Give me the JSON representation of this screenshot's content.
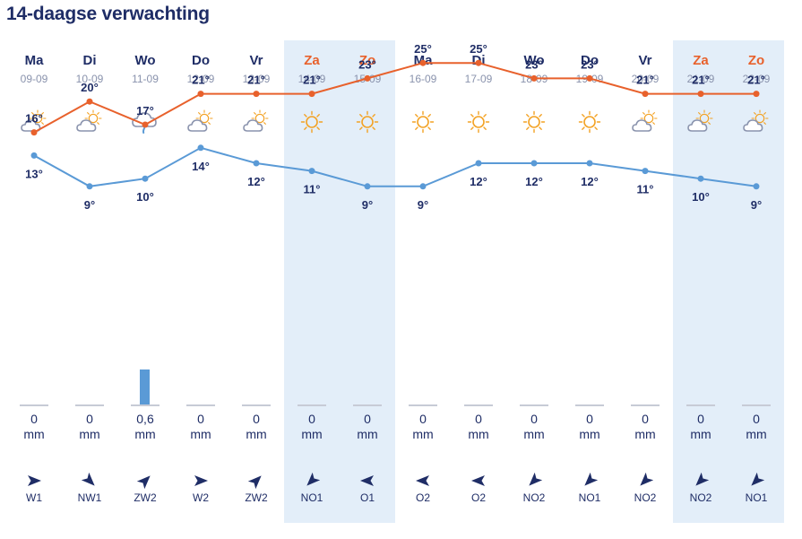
{
  "page": {
    "title": "14-daagse verwachting"
  },
  "colors": {
    "max_line": "#e8612c",
    "min_line": "#5a9ad6",
    "weekend_bg": "#e3eef9",
    "text": "#1f2d66",
    "weekend_text": "#e8612c",
    "sun": "#f3a224",
    "cloud": "#8a93ad",
    "rain": "#5a9ad6"
  },
  "days": [
    {
      "day": "Ma",
      "date": "09-09",
      "weekend": false,
      "icon": "sun-behind-cloud-icon",
      "max": "16°",
      "min": "13°",
      "max_val": 16,
      "min_val": 13,
      "rain": "0",
      "rain_val": 0,
      "unit": "mm",
      "wind": "W1",
      "wind_dir": 90
    },
    {
      "day": "Di",
      "date": "10-09",
      "weekend": false,
      "icon": "sun-behind-cloud-icon",
      "max": "20°",
      "min": "9°",
      "max_val": 20,
      "min_val": 9,
      "rain": "0",
      "rain_val": 0,
      "unit": "mm",
      "wind": "NW1",
      "wind_dir": 135
    },
    {
      "day": "Wo",
      "date": "11-09",
      "weekend": false,
      "icon": "rain-cloud-icon",
      "max": "17°",
      "min": "10°",
      "max_val": 17,
      "min_val": 10,
      "rain": "0,6",
      "rain_val": 0.6,
      "unit": "mm",
      "wind": "ZW2",
      "wind_dir": 45
    },
    {
      "day": "Do",
      "date": "12-09",
      "weekend": false,
      "icon": "sun-behind-cloud-icon",
      "max": "21°",
      "min": "14°",
      "max_val": 21,
      "min_val": 14,
      "rain": "0",
      "rain_val": 0,
      "unit": "mm",
      "wind": "W2",
      "wind_dir": 90
    },
    {
      "day": "Vr",
      "date": "13-09",
      "weekend": false,
      "icon": "sun-behind-cloud-icon",
      "max": "21°",
      "min": "12°",
      "max_val": 21,
      "min_val": 12,
      "rain": "0",
      "rain_val": 0,
      "unit": "mm",
      "wind": "ZW2",
      "wind_dir": 45
    },
    {
      "day": "Za",
      "date": "14-09",
      "weekend": true,
      "icon": "sun-icon",
      "max": "21°",
      "min": "11°",
      "max_val": 21,
      "min_val": 11,
      "rain": "0",
      "rain_val": 0,
      "unit": "mm",
      "wind": "NO1",
      "wind_dir": 225
    },
    {
      "day": "Zo",
      "date": "15-09",
      "weekend": true,
      "icon": "sun-icon",
      "max": "23°",
      "min": "9°",
      "max_val": 23,
      "min_val": 9,
      "rain": "0",
      "rain_val": 0,
      "unit": "mm",
      "wind": "O1",
      "wind_dir": 270
    },
    {
      "day": "Ma",
      "date": "16-09",
      "weekend": false,
      "icon": "sun-icon",
      "max": "25°",
      "min": "9°",
      "max_val": 25,
      "min_val": 9,
      "rain": "0",
      "rain_val": 0,
      "unit": "mm",
      "wind": "O2",
      "wind_dir": 270
    },
    {
      "day": "Di",
      "date": "17-09",
      "weekend": false,
      "icon": "sun-icon",
      "max": "25°",
      "min": "12°",
      "max_val": 25,
      "min_val": 12,
      "rain": "0",
      "rain_val": 0,
      "unit": "mm",
      "wind": "O2",
      "wind_dir": 270
    },
    {
      "day": "Wo",
      "date": "18-09",
      "weekend": false,
      "icon": "sun-icon",
      "max": "23°",
      "min": "12°",
      "max_val": 23,
      "min_val": 12,
      "rain": "0",
      "rain_val": 0,
      "unit": "mm",
      "wind": "NO2",
      "wind_dir": 225
    },
    {
      "day": "Do",
      "date": "19-09",
      "weekend": false,
      "icon": "sun-icon",
      "max": "23°",
      "min": "12°",
      "max_val": 23,
      "min_val": 12,
      "rain": "0",
      "rain_val": 0,
      "unit": "mm",
      "wind": "NO1",
      "wind_dir": 225
    },
    {
      "day": "Vr",
      "date": "20-09",
      "weekend": false,
      "icon": "sun-behind-cloud-icon",
      "max": "21°",
      "min": "11°",
      "max_val": 21,
      "min_val": 11,
      "rain": "0",
      "rain_val": 0,
      "unit": "mm",
      "wind": "NO2",
      "wind_dir": 225
    },
    {
      "day": "Za",
      "date": "21-09",
      "weekend": true,
      "icon": "sun-behind-cloud-icon",
      "max": "21°",
      "min": "10°",
      "max_val": 21,
      "min_val": 10,
      "rain": "0",
      "rain_val": 0,
      "unit": "mm",
      "wind": "NO2",
      "wind_dir": 225
    },
    {
      "day": "Zo",
      "date": "22-09",
      "weekend": true,
      "icon": "sun-behind-cloud-icon",
      "max": "21°",
      "min": "9°",
      "max_val": 21,
      "min_val": 9,
      "rain": "0",
      "rain_val": 0,
      "unit": "mm",
      "wind": "NO1",
      "wind_dir": 225
    }
  ]
}
